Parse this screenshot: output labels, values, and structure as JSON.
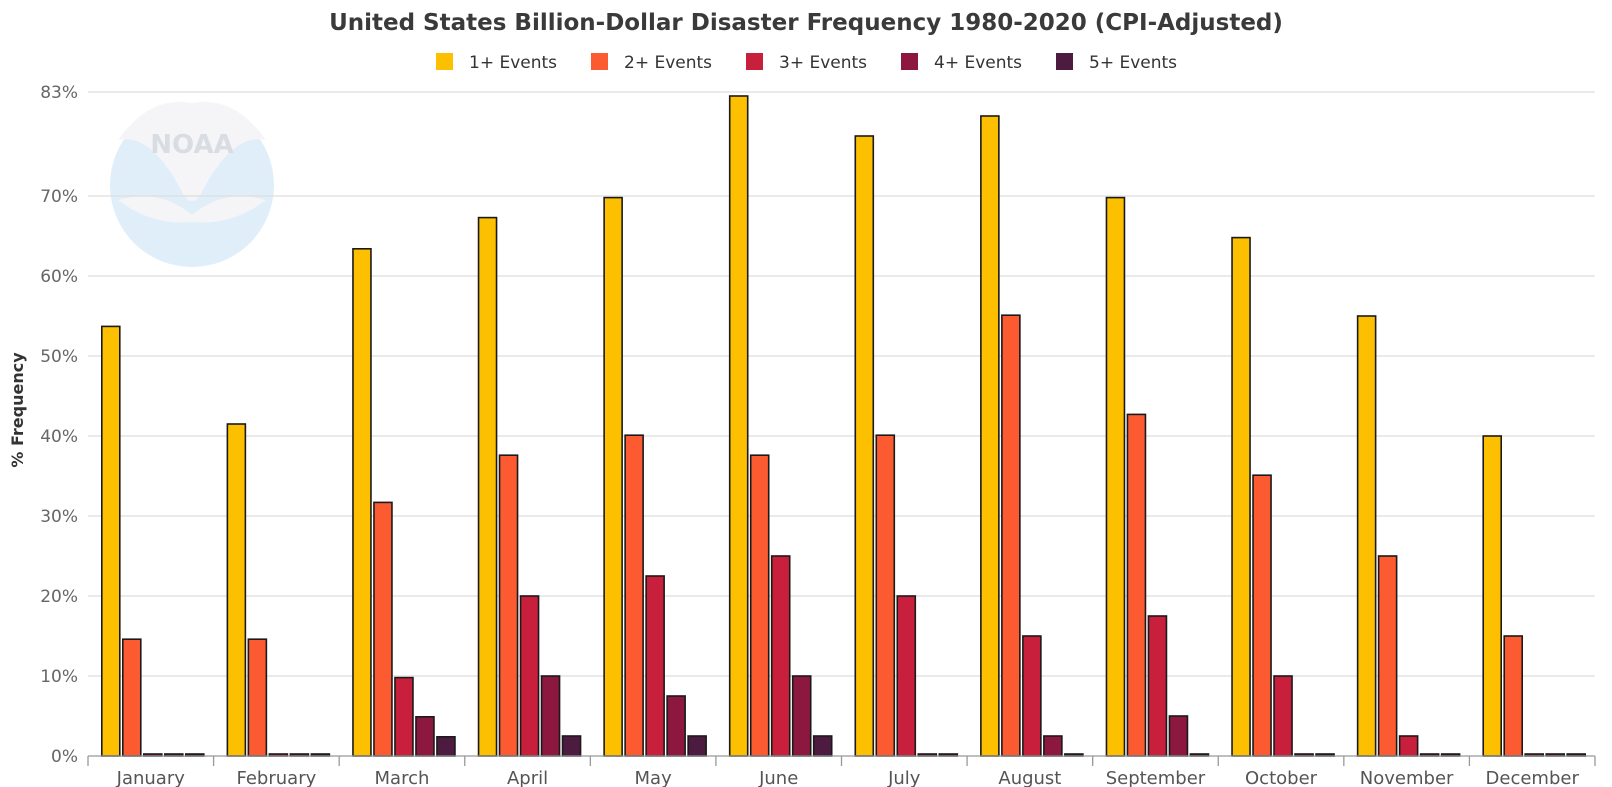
{
  "chart_data": {
    "type": "bar",
    "title": "United States Billion-Dollar Disaster Frequency 1980-2020 (CPI-Adjusted)",
    "ylabel": "% Frequency",
    "xlabel": "",
    "ylim": [
      0,
      83
    ],
    "yticks": [
      0,
      10,
      20,
      30,
      40,
      50,
      60,
      70,
      83
    ],
    "ytick_labels": [
      "0%",
      "10%",
      "20%",
      "30%",
      "40%",
      "50%",
      "60%",
      "70%",
      "83%"
    ],
    "grid": true,
    "legend_position": "top-center",
    "categories": [
      "January",
      "February",
      "March",
      "April",
      "May",
      "June",
      "July",
      "August",
      "September",
      "October",
      "November",
      "December"
    ],
    "series": [
      {
        "name": "1+ Events",
        "color": "#fcc000",
        "values": [
          53.7,
          41.5,
          63.4,
          67.3,
          69.8,
          82.5,
          77.5,
          80.0,
          69.8,
          64.8,
          55.0,
          40.0
        ]
      },
      {
        "name": "2+ Events",
        "color": "#fc5b32",
        "values": [
          14.6,
          14.6,
          31.7,
          37.6,
          40.1,
          37.6,
          40.1,
          55.1,
          42.7,
          35.1,
          25.0,
          15.0
        ]
      },
      {
        "name": "3+ Events",
        "color": "#c8203c",
        "values": [
          0,
          0,
          9.8,
          20.0,
          22.5,
          25.0,
          20.0,
          15.0,
          17.5,
          10.0,
          2.5,
          0
        ]
      },
      {
        "name": "4+ Events",
        "color": "#8c1840",
        "values": [
          0,
          0,
          4.9,
          10.0,
          7.5,
          10.0,
          0,
          2.5,
          5.0,
          0,
          0,
          0
        ]
      },
      {
        "name": "5+ Events",
        "color": "#4d1a40",
        "values": [
          0,
          0,
          2.4,
          2.5,
          2.5,
          2.5,
          0,
          0,
          0,
          0,
          0,
          0
        ]
      }
    ]
  },
  "watermark": {
    "text": "NOAA",
    "icon": "noaa-logo"
  }
}
